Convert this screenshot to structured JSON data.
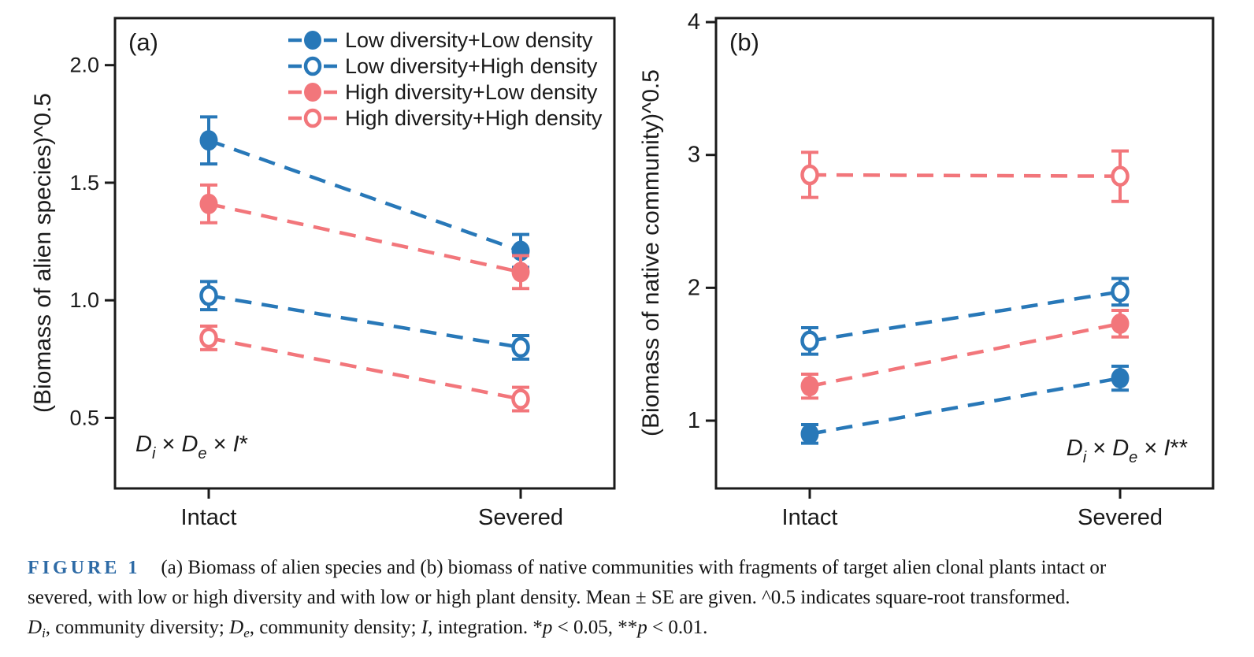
{
  "chart_data": [
    {
      "type": "line",
      "panel_label": "(a)",
      "ylabel": "(Biomass of alien species)^0.5",
      "xlabel": "",
      "categories": [
        "Intact",
        "Severed"
      ],
      "yticks": [
        0.5,
        1.0,
        1.5,
        2.0
      ],
      "ytick_labels": [
        "0.5",
        "1.0",
        "1.5",
        "2.0"
      ],
      "ylim": [
        0.2,
        2.2
      ],
      "grid": false,
      "legend_position": "top-right-inside",
      "annotation_text": "Di × De × I*",
      "annotation_segments": [
        {
          "t": "D",
          "s": "i"
        },
        {
          "t": "i",
          "s": "sub"
        },
        {
          "t": " × ",
          "s": "n"
        },
        {
          "t": "D",
          "s": "i"
        },
        {
          "t": "e",
          "s": "sub"
        },
        {
          "t": " × ",
          "s": "n"
        },
        {
          "t": "I",
          "s": "i"
        },
        {
          "t": "*",
          "s": "n"
        }
      ],
      "series": [
        {
          "name": "Low diversity+Low density",
          "color": "#2878b8",
          "marker": "filled",
          "values": [
            1.68,
            1.21
          ],
          "se": [
            0.1,
            0.07
          ]
        },
        {
          "name": "Low diversity+High density",
          "color": "#2878b8",
          "marker": "open",
          "values": [
            1.02,
            0.8
          ],
          "se": [
            0.06,
            0.05
          ]
        },
        {
          "name": "High diversity+Low density",
          "color": "#f2767b",
          "marker": "filled",
          "values": [
            1.41,
            1.12
          ],
          "se": [
            0.08,
            0.07
          ]
        },
        {
          "name": "High diversity+High density",
          "color": "#f2767b",
          "marker": "open",
          "values": [
            0.84,
            0.58
          ],
          "se": [
            0.05,
            0.05
          ]
        }
      ]
    },
    {
      "type": "line",
      "panel_label": "(b)",
      "ylabel": "(Biomass of native community)^0.5",
      "xlabel": "",
      "categories": [
        "Intact",
        "Severed"
      ],
      "yticks": [
        1,
        2,
        3,
        4
      ],
      "ytick_labels": [
        "1",
        "2",
        "3",
        "4"
      ],
      "ylim": [
        0.49,
        4.03
      ],
      "grid": false,
      "legend_position": "none",
      "annotation_text": "Di × De × I**",
      "annotation_segments": [
        {
          "t": "D",
          "s": "i"
        },
        {
          "t": "i",
          "s": "sub"
        },
        {
          "t": " × ",
          "s": "n"
        },
        {
          "t": "D",
          "s": "i"
        },
        {
          "t": "e",
          "s": "sub"
        },
        {
          "t": " × ",
          "s": "n"
        },
        {
          "t": "I",
          "s": "i"
        },
        {
          "t": "**",
          "s": "n"
        }
      ],
      "series": [
        {
          "name": "Low diversity+Low density",
          "color": "#2878b8",
          "marker": "filled",
          "values": [
            0.9,
            1.32
          ],
          "se": [
            0.07,
            0.09
          ]
        },
        {
          "name": "Low diversity+High density",
          "color": "#2878b8",
          "marker": "open",
          "values": [
            1.6,
            1.97
          ],
          "se": [
            0.1,
            0.1
          ]
        },
        {
          "name": "High diversity+Low density",
          "color": "#f2767b",
          "marker": "filled",
          "values": [
            1.26,
            1.73
          ],
          "se": [
            0.09,
            0.1
          ]
        },
        {
          "name": "High diversity+High density",
          "color": "#f2767b",
          "marker": "open",
          "values": [
            2.85,
            2.84
          ],
          "se": [
            0.17,
            0.19
          ]
        }
      ]
    }
  ],
  "legend": {
    "entries": [
      "Low diversity+Low density",
      "Low diversity+High density",
      "High diversity+Low density",
      "High diversity+High density"
    ]
  },
  "caption": {
    "label": "FIGURE 1",
    "lines": [
      [
        {
          "t": "(a) Biomass of alien species and (b) biomass of native communities with fragments of target alien clonal plants intact or",
          "s": "n"
        }
      ],
      [
        {
          "t": "severed, with low or high diversity and with low or high plant density. Mean ± SE are given. ^0.5 indicates square-root transformed.",
          "s": "n"
        }
      ],
      [
        {
          "t": "D",
          "s": "i"
        },
        {
          "t": "i",
          "s": "sub"
        },
        {
          "t": ", community diversity; ",
          "s": "n"
        },
        {
          "t": "D",
          "s": "i"
        },
        {
          "t": "e",
          "s": "sub"
        },
        {
          "t": ", community density; ",
          "s": "n"
        },
        {
          "t": "I",
          "s": "i"
        },
        {
          "t": ", integration. *",
          "s": "n"
        },
        {
          "t": "p",
          "s": "i"
        },
        {
          "t": " < 0.05, **",
          "s": "n"
        },
        {
          "t": "p",
          "s": "i"
        },
        {
          "t": " < 0.01.",
          "s": "n"
        }
      ]
    ]
  },
  "colors": {
    "blue": "#2878b8",
    "pink": "#f2767b",
    "axis": "#1a1a1a",
    "caption_label": "#2e6ba6",
    "text": "#141414"
  }
}
